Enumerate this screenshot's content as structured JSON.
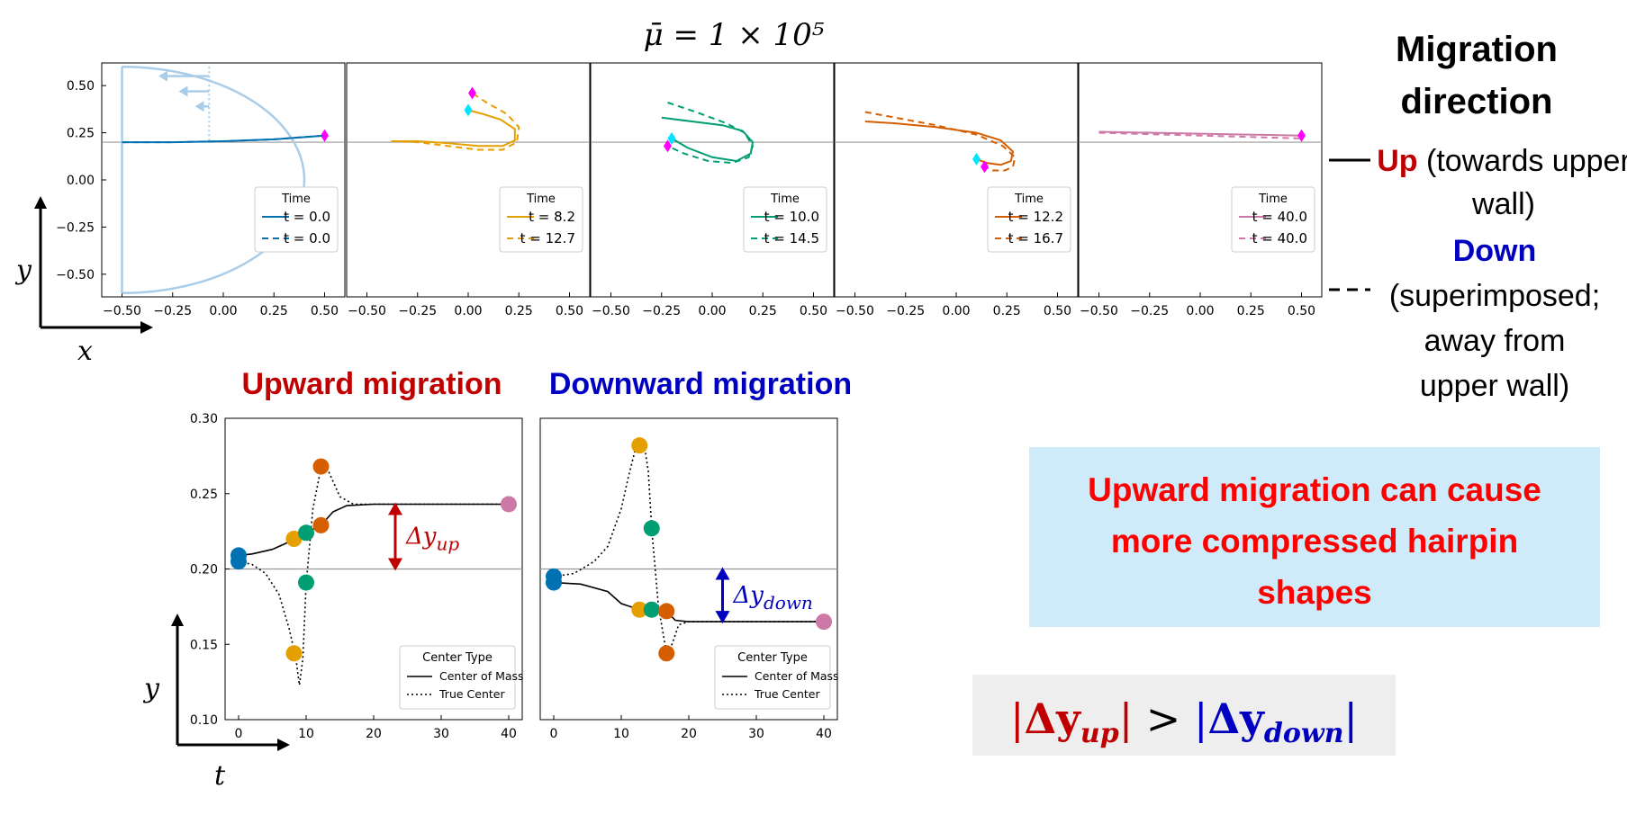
{
  "figure": {
    "title": "μ̄ = 1 × 10⁵",
    "migration_heading": "Migration direction",
    "up_word": "Up",
    "up_text": "(towards upper wall)",
    "down_word": "Down",
    "down_text": "(superimposed; away from upper wall)",
    "upward_title": "Upward migration",
    "downward_title": "Downward migration",
    "callout_text": "Upward migration can cause more compressed hairpin shapes",
    "inequality": "|Δy_up| > |Δy_down|",
    "dy_up_label": "Δy_up",
    "dy_down_label": "Δy_down",
    "x_axis_label": "x",
    "y_axis_label": "y",
    "t_axis_label": "t"
  },
  "colors": {
    "blue": "#0072b2",
    "orange": "#e69f00",
    "green": "#009e73",
    "vermillion": "#d55e00",
    "pink": "#cc79a7",
    "magenta_marker": "#ff00ff",
    "cyan_marker": "#00e5ff",
    "light_blue_shape": "#a9cde9",
    "up_red": "#c00000",
    "down_blue": "#0000c0",
    "callout_bg": "#cfeaf9",
    "callout_text": "#ff0000",
    "ineq_bg": "#eeeeee"
  },
  "chart_data": [
    {
      "type": "line",
      "panel": "shape-t0",
      "legend_title": "Time",
      "xlim": [
        -0.6,
        0.6
      ],
      "ylim": [
        -0.62,
        0.62
      ],
      "xticks": [
        -0.5,
        -0.25,
        0.0,
        0.25,
        0.5
      ],
      "yticks": [
        0.5,
        0.25,
        0.0,
        -0.25,
        -0.5
      ],
      "xtick_labels": [
        "−0.50",
        "−0.25",
        "0.00",
        "0.25",
        "0.50"
      ],
      "ytick_labels": [
        "0.50",
        "0.25",
        "0.00",
        "−0.25",
        "−0.50"
      ],
      "series": [
        {
          "name": "t = 0.0",
          "style": "solid",
          "color": "blue",
          "x": [
            -0.5,
            -0.25,
            0.0,
            0.25,
            0.5
          ],
          "y": [
            0.2,
            0.2,
            0.205,
            0.215,
            0.235
          ]
        },
        {
          "name": "t = 0.0",
          "style": "dashed",
          "color": "blue",
          "x": [
            -0.5,
            -0.25,
            0.0,
            0.25,
            0.5
          ],
          "y": [
            0.2,
            0.2,
            0.205,
            0.215,
            0.235
          ]
        }
      ]
    },
    {
      "type": "line",
      "panel": "shape-t8",
      "legend_title": "Time",
      "xlim": [
        -0.6,
        0.6
      ],
      "ylim": [
        -0.62,
        0.62
      ],
      "xticks": [
        -0.5,
        -0.25,
        0.0,
        0.25,
        0.5
      ],
      "xtick_labels": [
        "−0.50",
        "−0.25",
        "0.00",
        "0.25",
        "0.50"
      ],
      "series": [
        {
          "name": "t = 8.2",
          "style": "solid",
          "color": "orange",
          "x": [
            -0.38,
            -0.25,
            -0.1,
            0.05,
            0.17,
            0.23,
            0.23,
            0.16,
            0.07,
            0.0
          ],
          "y": [
            0.205,
            0.205,
            0.195,
            0.18,
            0.18,
            0.21,
            0.27,
            0.32,
            0.35,
            0.37
          ]
        },
        {
          "name": "t = 12.7",
          "style": "dashed",
          "color": "orange",
          "x": [
            -0.38,
            -0.25,
            -0.1,
            0.05,
            0.17,
            0.24,
            0.25,
            0.19,
            0.09,
            0.02
          ],
          "y": [
            0.205,
            0.2,
            0.18,
            0.16,
            0.16,
            0.2,
            0.28,
            0.35,
            0.41,
            0.46
          ]
        }
      ]
    },
    {
      "type": "line",
      "panel": "shape-t10",
      "legend_title": "Time",
      "xlim": [
        -0.6,
        0.6
      ],
      "ylim": [
        -0.62,
        0.62
      ],
      "xticks": [
        -0.5,
        -0.25,
        0.0,
        0.25,
        0.5
      ],
      "xtick_labels": [
        "−0.50",
        "−0.25",
        "0.00",
        "0.25",
        "0.50"
      ],
      "series": [
        {
          "name": "t = 10.0",
          "style": "solid",
          "color": "green",
          "x": [
            -0.25,
            -0.1,
            0.05,
            0.15,
            0.2,
            0.19,
            0.12,
            0.0,
            -0.12,
            -0.2
          ],
          "y": [
            0.33,
            0.31,
            0.29,
            0.26,
            0.2,
            0.14,
            0.1,
            0.12,
            0.17,
            0.22
          ]
        },
        {
          "name": "t = 14.5",
          "style": "dashed",
          "color": "green",
          "x": [
            -0.22,
            -0.08,
            0.07,
            0.16,
            0.2,
            0.18,
            0.1,
            -0.02,
            -0.14,
            -0.22
          ],
          "y": [
            0.41,
            0.36,
            0.3,
            0.25,
            0.18,
            0.12,
            0.09,
            0.1,
            0.14,
            0.18
          ]
        }
      ]
    },
    {
      "type": "line",
      "panel": "shape-t12",
      "legend_title": "Time",
      "xlim": [
        -0.6,
        0.6
      ],
      "ylim": [
        -0.62,
        0.62
      ],
      "xticks": [
        -0.5,
        -0.25,
        0.0,
        0.25,
        0.5
      ],
      "xtick_labels": [
        "−0.50",
        "−0.25",
        "0.00",
        "0.25",
        "0.50"
      ],
      "series": [
        {
          "name": "t = 12.2",
          "style": "solid",
          "color": "vermillion",
          "x": [
            -0.45,
            -0.3,
            -0.1,
            0.1,
            0.22,
            0.28,
            0.27,
            0.22,
            0.15,
            0.1
          ],
          "y": [
            0.31,
            0.3,
            0.28,
            0.25,
            0.21,
            0.15,
            0.1,
            0.08,
            0.09,
            0.11
          ]
        },
        {
          "name": "t = 16.7",
          "style": "dashed",
          "color": "vermillion",
          "x": [
            -0.45,
            -0.3,
            -0.1,
            0.1,
            0.23,
            0.29,
            0.28,
            0.24,
            0.18,
            0.14
          ],
          "y": [
            0.36,
            0.33,
            0.29,
            0.24,
            0.18,
            0.12,
            0.07,
            0.05,
            0.05,
            0.07
          ]
        }
      ]
    },
    {
      "type": "line",
      "panel": "shape-t40",
      "legend_title": "Time",
      "xlim": [
        -0.6,
        0.6
      ],
      "ylim": [
        -0.62,
        0.62
      ],
      "xticks": [
        -0.5,
        -0.25,
        0.0,
        0.25,
        0.5
      ],
      "xtick_labels": [
        "−0.50",
        "−0.25",
        "0.00",
        "0.25",
        "0.50"
      ],
      "series": [
        {
          "name": "t = 40.0",
          "style": "solid",
          "color": "pink",
          "x": [
            -0.5,
            0.0,
            0.5
          ],
          "y": [
            0.255,
            0.245,
            0.235
          ]
        },
        {
          "name": "t = 40.0",
          "style": "dashed",
          "color": "pink",
          "x": [
            -0.5,
            0.0,
            0.5
          ],
          "y": [
            0.25,
            0.235,
            0.22
          ]
        }
      ]
    },
    {
      "type": "line",
      "panel": "upward-migration",
      "legend_title": "Center Type",
      "xlim": [
        -2,
        42
      ],
      "ylim": [
        0.1,
        0.3
      ],
      "xticks": [
        0,
        10,
        20,
        30,
        40
      ],
      "yticks": [
        0.3,
        0.25,
        0.2,
        0.15,
        0.1
      ],
      "xtick_labels": [
        "0",
        "10",
        "20",
        "30",
        "40"
      ],
      "ytick_labels": [
        "0.30",
        "0.25",
        "0.20",
        "0.15",
        "0.10"
      ],
      "series": [
        {
          "name": "Center of Mass",
          "style": "solid",
          "x": [
            0,
            2,
            5,
            7,
            8.2,
            10,
            12.2,
            14,
            16,
            20,
            30,
            40
          ],
          "y": [
            0.209,
            0.21,
            0.213,
            0.217,
            0.22,
            0.224,
            0.229,
            0.238,
            0.242,
            0.243,
            0.243,
            0.243
          ]
        },
        {
          "name": "True Center",
          "style": "dotted",
          "x": [
            0,
            2,
            4,
            6,
            7.5,
            8.5,
            9,
            9.5,
            10,
            11,
            12.2,
            13,
            14,
            15,
            17,
            20,
            30,
            40
          ],
          "y": [
            0.205,
            0.203,
            0.197,
            0.183,
            0.16,
            0.14,
            0.123,
            0.14,
            0.19,
            0.24,
            0.267,
            0.268,
            0.258,
            0.248,
            0.243,
            0.243,
            0.243,
            0.243
          ]
        }
      ],
      "markers": [
        {
          "t": 0,
          "y": 0.209,
          "color": "blue"
        },
        {
          "t": 0,
          "y": 0.205,
          "color": "blue"
        },
        {
          "t": 8.2,
          "y": 0.22,
          "color": "orange"
        },
        {
          "t": 8.2,
          "y": 0.144,
          "color": "orange"
        },
        {
          "t": 10,
          "y": 0.224,
          "color": "green"
        },
        {
          "t": 10,
          "y": 0.191,
          "color": "green"
        },
        {
          "t": 12.2,
          "y": 0.229,
          "color": "vermillion"
        },
        {
          "t": 12.2,
          "y": 0.268,
          "color": "vermillion"
        },
        {
          "t": 40,
          "y": 0.243,
          "color": "pink"
        }
      ],
      "delta": {
        "t": 23.2,
        "y_from": 0.2,
        "y_to": 0.243
      }
    },
    {
      "type": "line",
      "panel": "downward-migration",
      "legend_title": "Center Type",
      "xlim": [
        -2,
        42
      ],
      "ylim": [
        0.1,
        0.3
      ],
      "xticks": [
        0,
        10,
        20,
        30,
        40
      ],
      "xtick_labels": [
        "0",
        "10",
        "20",
        "30",
        "40"
      ],
      "series": [
        {
          "name": "Center of Mass",
          "style": "solid",
          "x": [
            0,
            4,
            8,
            10,
            12.7,
            14.5,
            16.7,
            18,
            20,
            30,
            40
          ],
          "y": [
            0.191,
            0.19,
            0.185,
            0.177,
            0.173,
            0.173,
            0.172,
            0.166,
            0.165,
            0.165,
            0.165
          ]
        },
        {
          "name": "True Center",
          "style": "dotted",
          "x": [
            0,
            3,
            6,
            8,
            10,
            11,
            12,
            12.7,
            13.3,
            14,
            14.5,
            15.5,
            16.7,
            17.5,
            18.5,
            20,
            30,
            40
          ],
          "y": [
            0.195,
            0.197,
            0.205,
            0.215,
            0.24,
            0.26,
            0.278,
            0.282,
            0.285,
            0.265,
            0.227,
            0.175,
            0.144,
            0.15,
            0.163,
            0.165,
            0.165,
            0.165
          ]
        }
      ],
      "markers": [
        {
          "t": 0,
          "y": 0.195,
          "color": "blue"
        },
        {
          "t": 0,
          "y": 0.191,
          "color": "blue"
        },
        {
          "t": 12.7,
          "y": 0.173,
          "color": "orange"
        },
        {
          "t": 12.7,
          "y": 0.282,
          "color": "orange"
        },
        {
          "t": 14.5,
          "y": 0.173,
          "color": "green"
        },
        {
          "t": 14.5,
          "y": 0.227,
          "color": "green"
        },
        {
          "t": 16.7,
          "y": 0.172,
          "color": "vermillion"
        },
        {
          "t": 16.7,
          "y": 0.144,
          "color": "vermillion"
        },
        {
          "t": 40,
          "y": 0.165,
          "color": "pink"
        }
      ],
      "delta": {
        "t": 25,
        "y_from": 0.2,
        "y_to": 0.165
      }
    }
  ]
}
